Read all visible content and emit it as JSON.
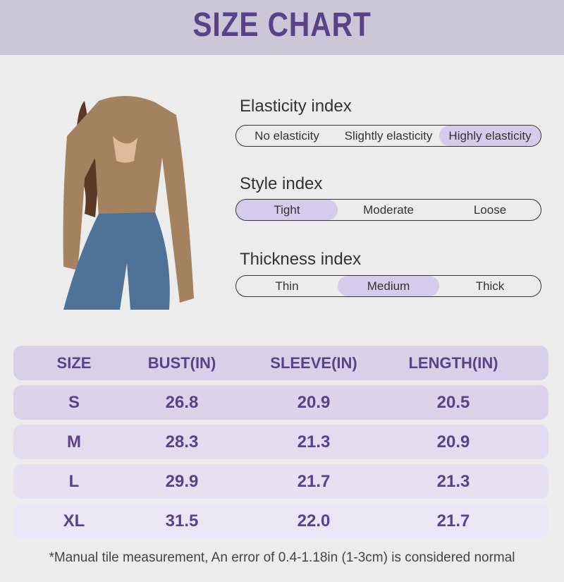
{
  "title": "SIZE CHART",
  "indices": [
    {
      "label": "Elasticity index",
      "options": [
        "No elasticity",
        "Slightly elasticity",
        "Highly elasticity"
      ],
      "selected": 2
    },
    {
      "label": "Style index",
      "options": [
        "Tight",
        "Moderate",
        "Loose"
      ],
      "selected": 0
    },
    {
      "label": "Thickness index",
      "options": [
        "Thin",
        "Medium",
        "Thick"
      ],
      "selected": 1
    }
  ],
  "table": {
    "headers": [
      "SIZE",
      "BUST(IN)",
      "SLEEVE(IN)",
      "LENGTH(IN)"
    ],
    "rows": [
      [
        "S",
        "26.8",
        "20.9",
        "20.5"
      ],
      [
        "M",
        "28.3",
        "21.3",
        "20.9"
      ],
      [
        "L",
        "29.9",
        "21.7",
        "21.3"
      ],
      [
        "XL",
        "31.5",
        "22.0",
        "21.7"
      ]
    ]
  },
  "footnote": "*Manual tile measurement, An error of 0.4-1.18in (1-3cm) is considered normal",
  "colors": {
    "accent": "#5a4287",
    "highlight": "#d5cbea",
    "band": "#ccc6d9",
    "background": "#ececec"
  }
}
